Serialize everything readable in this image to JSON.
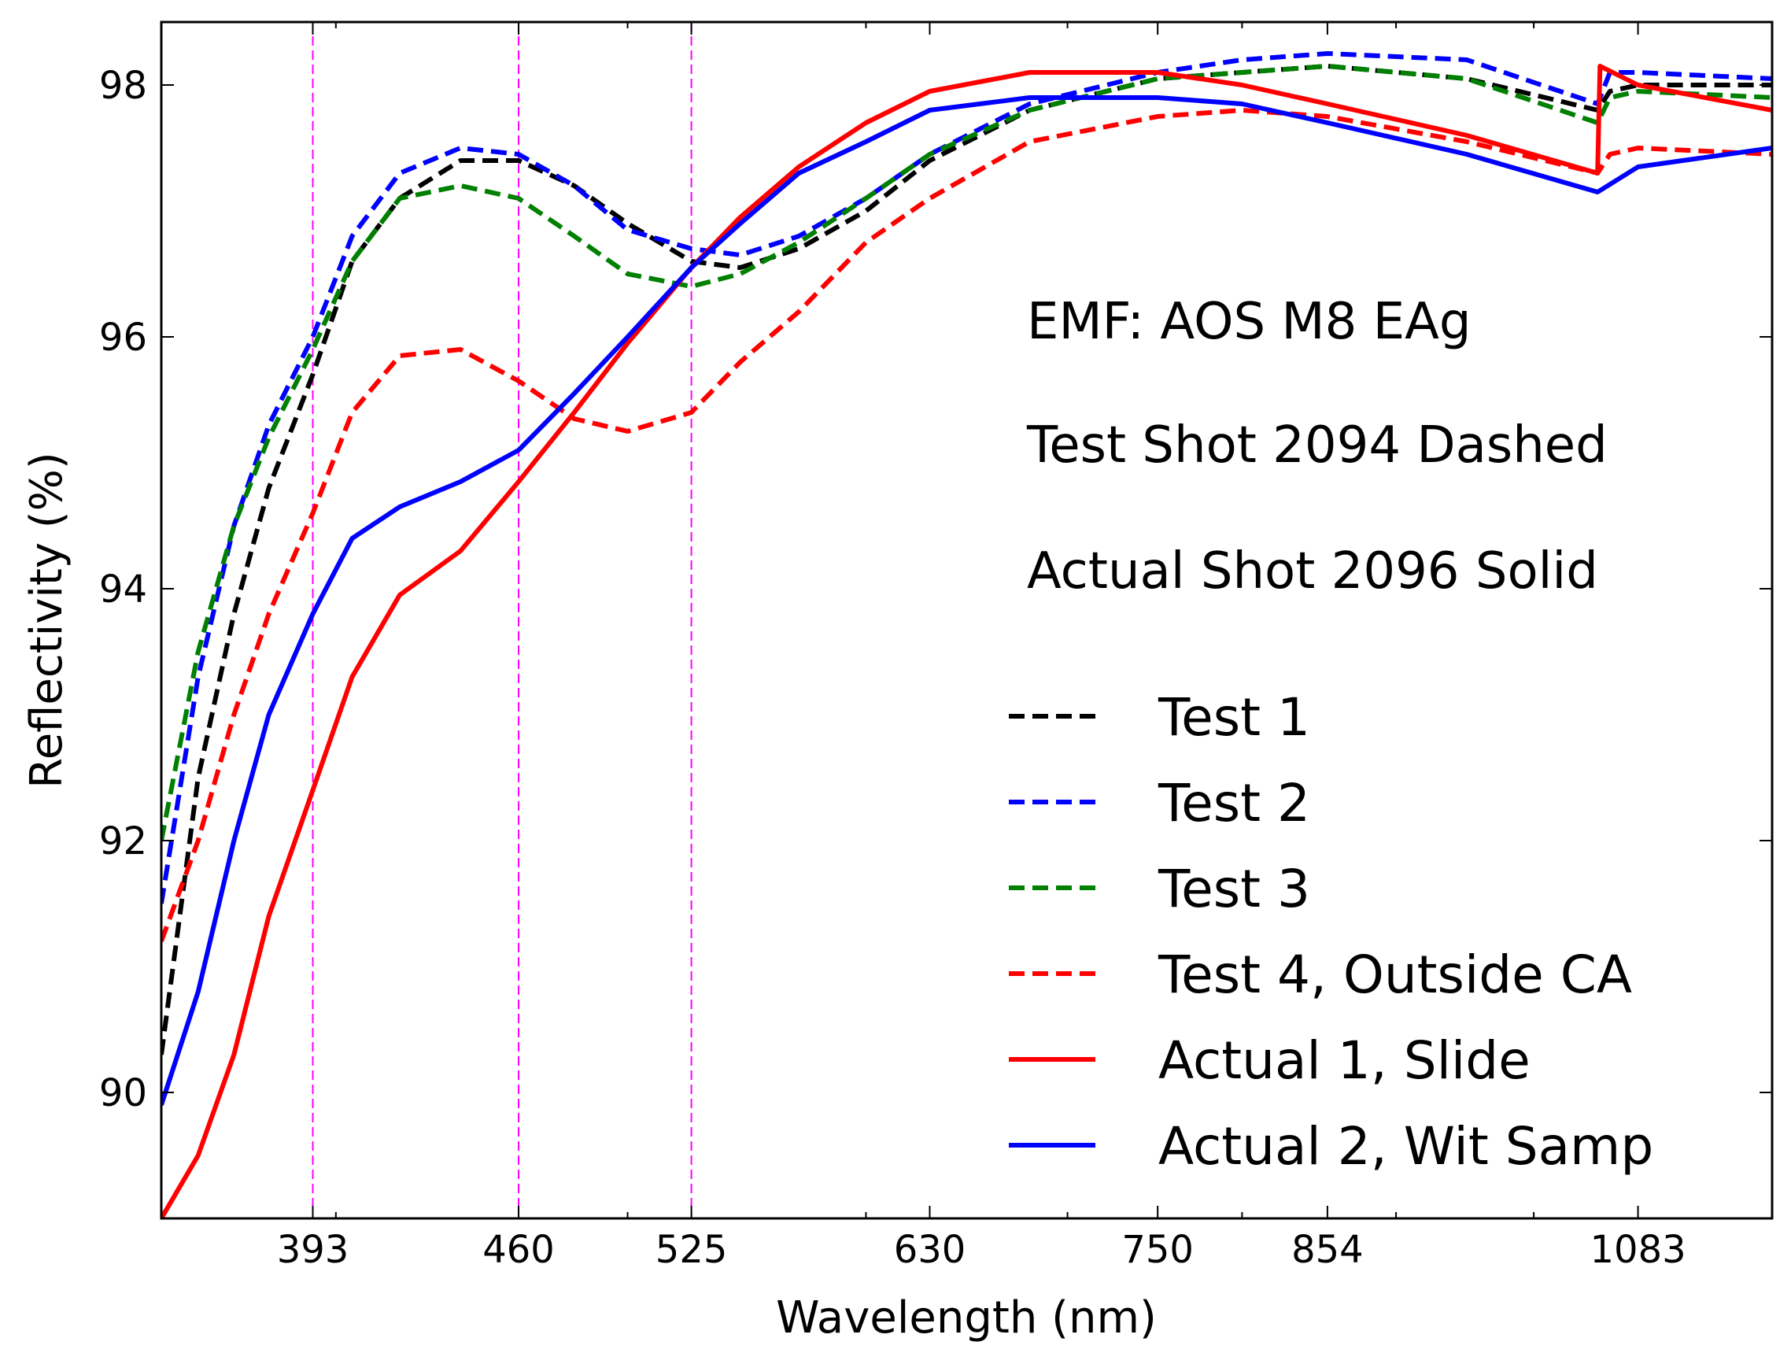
{
  "chart_data": {
    "type": "line",
    "title": "",
    "xlabel": "Wavelength (nm)",
    "ylabel": "Reflectivity (%)",
    "xscale": "log",
    "xlim": [
      350,
      1200
    ],
    "ylim": [
      89,
      98.5
    ],
    "xticks": [
      393,
      460,
      525,
      630,
      750,
      854,
      1083
    ],
    "yticks": [
      90,
      92,
      94,
      96,
      98
    ],
    "vlines": [
      393,
      460,
      525
    ],
    "annotations": [
      "EMF: AOS M8 EAg",
      "Test Shot 2094 Dashed",
      "Actual Shot 2096 Solid"
    ],
    "legend_position": "lower-right",
    "series": [
      {
        "name": "Test 1",
        "color": "#000000",
        "style": "dashed",
        "x": [
          350,
          360,
          370,
          380,
          393,
          405,
          420,
          440,
          460,
          480,
          500,
          525,
          545,
          570,
          600,
          630,
          680,
          750,
          800,
          854,
          950,
          1050,
          1060,
          1083,
          1200
        ],
        "y": [
          90.3,
          92.5,
          93.8,
          94.8,
          95.7,
          96.6,
          97.1,
          97.4,
          97.4,
          97.2,
          96.9,
          96.6,
          96.55,
          96.7,
          97.0,
          97.4,
          97.8,
          98.05,
          98.1,
          98.15,
          98.05,
          97.8,
          97.95,
          98.0,
          98.0
        ]
      },
      {
        "name": "Test 2",
        "color": "#0000ff",
        "style": "dashed",
        "x": [
          350,
          360,
          370,
          380,
          393,
          405,
          420,
          440,
          460,
          480,
          500,
          525,
          545,
          570,
          600,
          630,
          680,
          750,
          800,
          854,
          950,
          1050,
          1060,
          1083,
          1200
        ],
        "y": [
          91.5,
          93.3,
          94.5,
          95.3,
          96.0,
          96.8,
          97.3,
          97.5,
          97.45,
          97.2,
          96.85,
          96.7,
          96.65,
          96.8,
          97.1,
          97.45,
          97.85,
          98.1,
          98.2,
          98.25,
          98.2,
          97.85,
          98.1,
          98.1,
          98.05
        ]
      },
      {
        "name": "Test 3",
        "color": "#008000",
        "style": "dashed",
        "x": [
          350,
          360,
          370,
          380,
          393,
          405,
          420,
          440,
          460,
          480,
          500,
          525,
          545,
          570,
          600,
          630,
          680,
          750,
          800,
          854,
          950,
          1050,
          1060,
          1083,
          1200
        ],
        "y": [
          92.0,
          93.5,
          94.5,
          95.2,
          95.9,
          96.6,
          97.1,
          97.2,
          97.1,
          96.8,
          96.5,
          96.4,
          96.5,
          96.75,
          97.1,
          97.45,
          97.8,
          98.05,
          98.1,
          98.15,
          98.05,
          97.7,
          97.9,
          97.95,
          97.9
        ]
      },
      {
        "name": "Test 4, Outside CA",
        "color": "#ff0000",
        "style": "dashed",
        "x": [
          350,
          360,
          370,
          380,
          393,
          405,
          420,
          440,
          460,
          480,
          500,
          525,
          545,
          570,
          600,
          630,
          680,
          750,
          800,
          854,
          950,
          1050,
          1060,
          1083,
          1200
        ],
        "y": [
          91.2,
          92.0,
          93.0,
          93.8,
          94.6,
          95.4,
          95.85,
          95.9,
          95.65,
          95.35,
          95.25,
          95.4,
          95.8,
          96.2,
          96.75,
          97.1,
          97.55,
          97.75,
          97.8,
          97.75,
          97.55,
          97.3,
          97.45,
          97.5,
          97.45
        ]
      },
      {
        "name": "Actual 1, Slide",
        "color": "#ff0000",
        "style": "solid",
        "x": [
          350,
          360,
          370,
          380,
          393,
          405,
          420,
          440,
          460,
          480,
          500,
          525,
          545,
          570,
          600,
          630,
          680,
          700,
          750,
          800,
          854,
          950,
          1050,
          1052,
          1083,
          1200
        ],
        "y": [
          89.0,
          89.5,
          90.3,
          91.4,
          92.4,
          93.3,
          93.95,
          94.3,
          94.85,
          95.4,
          95.95,
          96.55,
          96.95,
          97.35,
          97.7,
          97.95,
          98.1,
          98.1,
          98.1,
          98.0,
          97.85,
          97.6,
          97.3,
          98.15,
          98.0,
          97.8
        ]
      },
      {
        "name": "Actual 2, Wit Samp",
        "color": "#0000ff",
        "style": "solid",
        "x": [
          350,
          360,
          370,
          380,
          393,
          405,
          420,
          440,
          460,
          480,
          500,
          525,
          545,
          570,
          600,
          630,
          680,
          750,
          800,
          854,
          950,
          1050,
          1083,
          1200
        ],
        "y": [
          89.9,
          90.8,
          92.0,
          93.0,
          93.8,
          94.4,
          94.65,
          94.85,
          95.1,
          95.55,
          96.0,
          96.55,
          96.9,
          97.3,
          97.55,
          97.8,
          97.9,
          97.9,
          97.85,
          97.7,
          97.45,
          97.15,
          97.35,
          97.5
        ]
      }
    ]
  }
}
